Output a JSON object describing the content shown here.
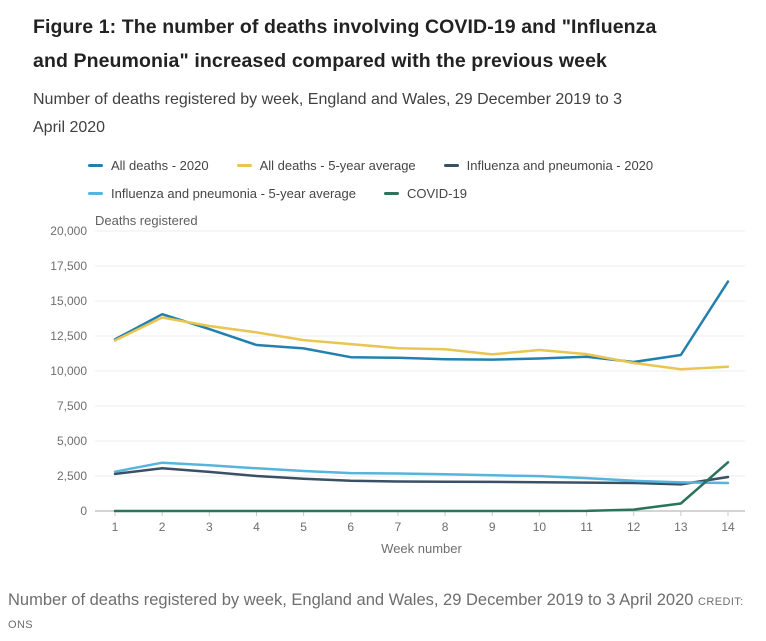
{
  "title": "Figure 1: The number of deaths involving COVID-19 and \"Influenza and Pneumonia\" increased compared with the previous week",
  "subtitle": "Number of deaths registered by week, England and Wales, 29 December 2019 to 3 April 2020",
  "caption": {
    "text": "Number of deaths registered by week, England and Wales, 29 December 2019 to 3 April 2020",
    "credit": "CREDIT: ONS"
  },
  "colors": {
    "title_text": "#222222",
    "subtitle_text": "#414042",
    "axis_text": "#6e6e6e",
    "gridline": "#ececec",
    "axis_line": "#a8a8a8",
    "caption_text": "#6e6e6e"
  },
  "chart_data": {
    "type": "line",
    "inner_label": "Deaths registered",
    "xlabel": "Week number",
    "ylabel": "Deaths registered",
    "x": [
      1,
      2,
      3,
      4,
      5,
      6,
      7,
      8,
      9,
      10,
      11,
      12,
      13,
      14
    ],
    "ylim": [
      0,
      20000
    ],
    "ytick_step": 2500,
    "grid": true,
    "legend_position": "top",
    "series": [
      {
        "name": "All deaths - 2020",
        "color": "#2380ae",
        "values": [
          12254,
          14058,
          12990,
          11856,
          11612,
          10986,
          10944,
          10841,
          10816,
          10895,
          11019,
          10645,
          11141,
          16387
        ]
      },
      {
        "name": "All deaths - 5-year average",
        "color": "#e9c651",
        "values": [
          12175,
          13822,
          13216,
          12760,
          12206,
          11925,
          11627,
          11548,
          11183,
          11498,
          11205,
          10573,
          10130,
          10305
        ]
      },
      {
        "name": "Influenza and pneumonia - 2020",
        "color": "#3a5064",
        "values": [
          2650,
          3050,
          2790,
          2500,
          2300,
          2160,
          2110,
          2090,
          2080,
          2060,
          2030,
          2000,
          1900,
          2430
        ]
      },
      {
        "name": "Influenza and pneumonia - 5-year average",
        "color": "#57b4dc",
        "values": [
          2810,
          3450,
          3270,
          3050,
          2860,
          2710,
          2680,
          2620,
          2550,
          2490,
          2350,
          2160,
          2040,
          2000
        ]
      },
      {
        "name": "COVID-19",
        "color": "#2b735b",
        "values": [
          0,
          0,
          0,
          0,
          0,
          0,
          0,
          0,
          0,
          0,
          5,
          103,
          539,
          3475
        ]
      }
    ]
  }
}
